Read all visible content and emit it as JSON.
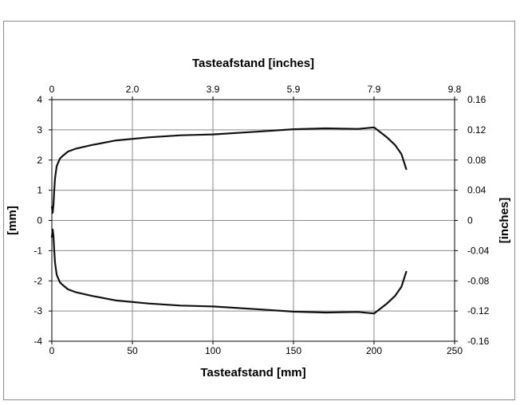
{
  "chart_data": {
    "type": "line",
    "title": "",
    "xlabel": "Tasteafstand [mm]",
    "x2label": "Tasteafstand [inches]",
    "ylabel": "[mm]",
    "y2label": "[inches]",
    "xlim": [
      0,
      250
    ],
    "ylim": [
      -4,
      4
    ],
    "x2lim": [
      0,
      9.8
    ],
    "y2lim": [
      -0.16,
      0.16
    ],
    "grid": true,
    "legend": "none",
    "x_ticks": [
      "0",
      "50",
      "100",
      "150",
      "200",
      "250"
    ],
    "x2_ticks": [
      "0",
      "2.0",
      "3.9",
      "5.9",
      "7.9",
      "9.8"
    ],
    "y_ticks": [
      "4",
      "3",
      "2",
      "1",
      "0",
      "-1",
      "-2",
      "-3",
      "-4"
    ],
    "y2_ticks": [
      "0.16",
      "0.12",
      "0.08",
      "0.04",
      "0",
      "-0.04",
      "-0.08",
      "-0.12",
      "-0.16"
    ],
    "line_color": "#111111",
    "series": [
      {
        "x": [
          220,
          217,
          213,
          208,
          200,
          190,
          170,
          150,
          130,
          100,
          80,
          60,
          40,
          25,
          15,
          10,
          7,
          5,
          3,
          2,
          1.5,
          1,
          0.5,
          0
        ],
        "y": [
          1.7,
          2.2,
          2.5,
          2.75,
          3.08,
          3.03,
          3.05,
          3.02,
          2.95,
          2.85,
          2.82,
          2.75,
          2.65,
          2.5,
          2.38,
          2.28,
          2.15,
          2.05,
          1.8,
          1.4,
          1.0,
          0.5,
          0.25,
          0.45
        ]
      },
      {
        "x": [
          0,
          0.5,
          1,
          1.5,
          2,
          3,
          5,
          7,
          10,
          15,
          25,
          40,
          60,
          80,
          100,
          130,
          150,
          170,
          190,
          200,
          208,
          213,
          217,
          220
        ],
        "y": [
          -0.55,
          -0.3,
          -0.5,
          -1.0,
          -1.4,
          -1.8,
          -2.05,
          -2.15,
          -2.28,
          -2.38,
          -2.5,
          -2.65,
          -2.75,
          -2.82,
          -2.85,
          -2.95,
          -3.02,
          -3.05,
          -3.03,
          -3.08,
          -2.75,
          -2.5,
          -2.2,
          -1.7
        ]
      }
    ]
  }
}
